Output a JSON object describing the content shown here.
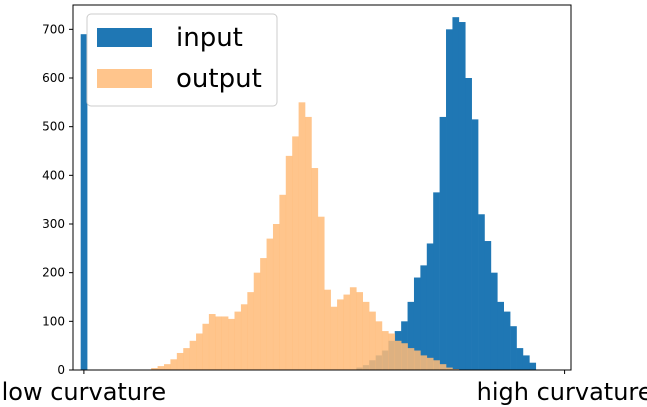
{
  "chart_data": {
    "type": "bar",
    "subtype": "overlapping-histogram",
    "title": "",
    "xlabel": "",
    "ylabel": "",
    "ylim": [
      0,
      750
    ],
    "y_ticks": [
      0,
      100,
      200,
      300,
      400,
      500,
      600,
      700
    ],
    "x_ticks": [
      {
        "label": "low curvature",
        "bin": 0
      },
      {
        "label": "high curvature",
        "bin": 75
      }
    ],
    "grid": false,
    "legend": {
      "placement": "top-left"
    },
    "series": [
      {
        "name": "input",
        "color": "#1f77b4",
        "opacity": 1.0,
        "bins": [
          [
            0,
            690
          ],
          [
            43,
            5
          ],
          [
            44,
            10
          ],
          [
            45,
            20
          ],
          [
            46,
            30
          ],
          [
            47,
            40
          ],
          [
            48,
            60
          ],
          [
            49,
            80
          ],
          [
            50,
            100
          ],
          [
            51,
            140
          ],
          [
            52,
            190
          ],
          [
            53,
            215
          ],
          [
            54,
            260
          ],
          [
            55,
            365
          ],
          [
            56,
            520
          ],
          [
            57,
            700
          ],
          [
            58,
            725
          ],
          [
            59,
            715
          ],
          [
            60,
            600
          ],
          [
            61,
            515
          ],
          [
            62,
            320
          ],
          [
            63,
            265
          ],
          [
            64,
            200
          ],
          [
            65,
            140
          ],
          [
            66,
            120
          ],
          [
            67,
            90
          ],
          [
            68,
            45
          ],
          [
            69,
            30
          ],
          [
            70,
            15
          ]
        ]
      },
      {
        "name": "output",
        "color": "#ffbb78",
        "opacity": 0.85,
        "bins": [
          [
            11,
            4
          ],
          [
            12,
            8
          ],
          [
            13,
            12
          ],
          [
            14,
            22
          ],
          [
            15,
            35
          ],
          [
            16,
            45
          ],
          [
            17,
            60
          ],
          [
            18,
            75
          ],
          [
            19,
            95
          ],
          [
            20,
            115
          ],
          [
            21,
            110
          ],
          [
            22,
            110
          ],
          [
            23,
            105
          ],
          [
            24,
            120
          ],
          [
            25,
            135
          ],
          [
            26,
            160
          ],
          [
            27,
            200
          ],
          [
            28,
            230
          ],
          [
            29,
            270
          ],
          [
            30,
            300
          ],
          [
            31,
            360
          ],
          [
            32,
            440
          ],
          [
            33,
            480
          ],
          [
            34,
            550
          ],
          [
            35,
            520
          ],
          [
            36,
            415
          ],
          [
            37,
            315
          ],
          [
            38,
            165
          ],
          [
            39,
            130
          ],
          [
            40,
            145
          ],
          [
            41,
            155
          ],
          [
            42,
            170
          ],
          [
            43,
            160
          ],
          [
            44,
            140
          ],
          [
            45,
            120
          ],
          [
            46,
            100
          ],
          [
            47,
            80
          ],
          [
            48,
            75
          ],
          [
            49,
            60
          ],
          [
            50,
            55
          ],
          [
            51,
            45
          ],
          [
            52,
            40
          ],
          [
            53,
            30
          ],
          [
            54,
            25
          ],
          [
            55,
            20
          ],
          [
            56,
            12
          ],
          [
            57,
            5
          ],
          [
            58,
            2
          ]
        ]
      }
    ]
  }
}
